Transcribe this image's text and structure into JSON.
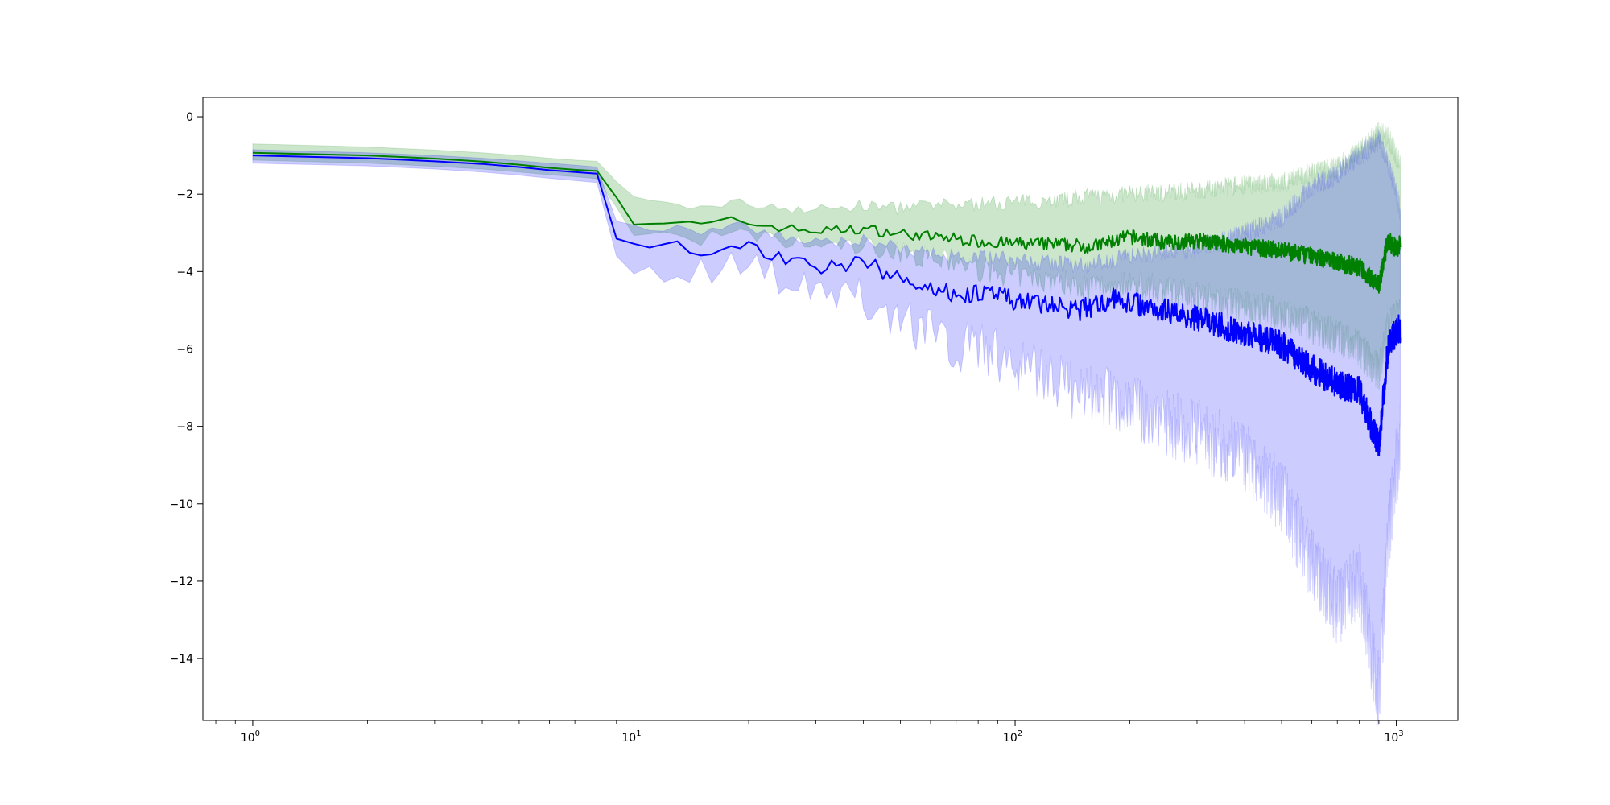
{
  "chart_data": {
    "type": "line",
    "title": "",
    "xlabel": "",
    "ylabel": "",
    "xscale": "log",
    "xlim": [
      0.74,
      1450
    ],
    "ylim": [
      -15.6,
      0.5
    ],
    "grid": false,
    "legend": "none",
    "xticks": [
      {
        "value": 1,
        "base": "10",
        "exp": "0"
      },
      {
        "value": 10,
        "base": "10",
        "exp": "1"
      },
      {
        "value": 100,
        "base": "10",
        "exp": "2"
      },
      {
        "value": 1000,
        "base": "10",
        "exp": "3"
      }
    ],
    "yticks": [
      {
        "value": 0,
        "label": "0"
      },
      {
        "value": -2,
        "label": "−2"
      },
      {
        "value": -4,
        "label": "−4"
      },
      {
        "value": -6,
        "label": "−6"
      },
      {
        "value": -8,
        "label": "−8"
      },
      {
        "value": -10,
        "label": "−10"
      },
      {
        "value": -12,
        "label": "−12"
      },
      {
        "value": -14,
        "label": "−14"
      }
    ],
    "series": [
      {
        "color": "#008000",
        "band_color": "#008000",
        "band_opacity": 0.2,
        "x": [
          1,
          2,
          3,
          4,
          5,
          6,
          7,
          8,
          10,
          13,
          15,
          18,
          20,
          25,
          30,
          40,
          50,
          60,
          70,
          80,
          100,
          130,
          160,
          200,
          250,
          300,
          400,
          500,
          600,
          700,
          800,
          900,
          950,
          1000,
          1024
        ],
        "mean": [
          -0.93,
          -1.0,
          -1.08,
          -1.16,
          -1.24,
          -1.32,
          -1.37,
          -1.4,
          -2.7,
          -2.74,
          -2.8,
          -2.68,
          -2.75,
          -2.88,
          -2.95,
          -2.9,
          -3.02,
          -3.1,
          -3.15,
          -3.22,
          -3.28,
          -3.3,
          -3.35,
          -3.1,
          -3.25,
          -3.2,
          -3.35,
          -3.45,
          -3.6,
          -3.75,
          -3.9,
          -4.35,
          -3.2,
          -3.4,
          -3.3
        ],
        "upper": [
          -0.7,
          -0.78,
          -0.86,
          -0.93,
          -1.0,
          -1.07,
          -1.12,
          -1.15,
          -2.15,
          -2.3,
          -2.35,
          -2.2,
          -2.25,
          -2.35,
          -2.4,
          -2.3,
          -2.35,
          -2.3,
          -2.28,
          -2.25,
          -2.2,
          -2.15,
          -2.05,
          -2.0,
          -1.95,
          -1.9,
          -1.75,
          -1.7,
          -1.45,
          -1.3,
          -0.9,
          -0.4,
          -0.5,
          -1.0,
          -1.2
        ],
        "lower": [
          -1.12,
          -1.2,
          -1.28,
          -1.35,
          -1.43,
          -1.5,
          -1.55,
          -1.6,
          -3.0,
          -3.1,
          -3.15,
          -3.05,
          -3.1,
          -3.25,
          -3.35,
          -3.35,
          -3.5,
          -3.65,
          -3.8,
          -3.95,
          -4.1,
          -4.25,
          -4.4,
          -4.3,
          -4.5,
          -4.6,
          -4.9,
          -5.1,
          -5.4,
          -5.7,
          -6.0,
          -6.6,
          -5.5,
          -5.2,
          -5.1
        ]
      },
      {
        "color": "#0000ff",
        "band_color": "#0000ff",
        "band_opacity": 0.2,
        "x": [
          1,
          2,
          3,
          4,
          5,
          6,
          7,
          8,
          9,
          10,
          12,
          13,
          15,
          18,
          20,
          25,
          30,
          35,
          40,
          50,
          60,
          70,
          80,
          100,
          130,
          150,
          180,
          200,
          250,
          300,
          400,
          500,
          600,
          700,
          800,
          900,
          950,
          1000,
          1024
        ],
        "mean": [
          -1.0,
          -1.07,
          -1.15,
          -1.22,
          -1.3,
          -1.38,
          -1.43,
          -1.47,
          -3.15,
          -3.35,
          -3.4,
          -3.28,
          -3.5,
          -3.2,
          -3.35,
          -3.65,
          -3.95,
          -3.85,
          -3.75,
          -4.2,
          -4.4,
          -4.6,
          -4.55,
          -4.75,
          -4.9,
          -5.0,
          -4.7,
          -4.8,
          -5.0,
          -5.2,
          -5.6,
          -5.9,
          -6.5,
          -6.9,
          -7.1,
          -8.5,
          -6.0,
          -5.5,
          -5.5
        ],
        "upper": [
          -0.85,
          -0.93,
          -1.0,
          -1.07,
          -1.14,
          -1.2,
          -1.25,
          -1.3,
          -2.7,
          -2.85,
          -2.9,
          -2.8,
          -3.0,
          -2.75,
          -2.85,
          -3.1,
          -3.25,
          -3.2,
          -3.15,
          -3.4,
          -3.5,
          -3.6,
          -3.6,
          -3.7,
          -3.8,
          -3.85,
          -3.7,
          -3.6,
          -3.5,
          -3.4,
          -3.0,
          -2.6,
          -1.8,
          -1.5,
          -1.0,
          -0.6,
          -1.2,
          -2.0,
          -2.4
        ],
        "lower": [
          -1.2,
          -1.27,
          -1.35,
          -1.43,
          -1.51,
          -1.59,
          -1.65,
          -1.7,
          -3.6,
          -3.8,
          -3.9,
          -3.8,
          -4.0,
          -3.7,
          -3.85,
          -4.25,
          -4.7,
          -4.7,
          -4.65,
          -5.2,
          -5.6,
          -5.9,
          -6.0,
          -6.3,
          -6.8,
          -7.2,
          -7.3,
          -7.5,
          -7.9,
          -8.2,
          -8.8,
          -9.8,
          -11.5,
          -12.7,
          -12.0,
          -14.9,
          -11.0,
          -9.0,
          -8.5
        ]
      }
    ]
  }
}
